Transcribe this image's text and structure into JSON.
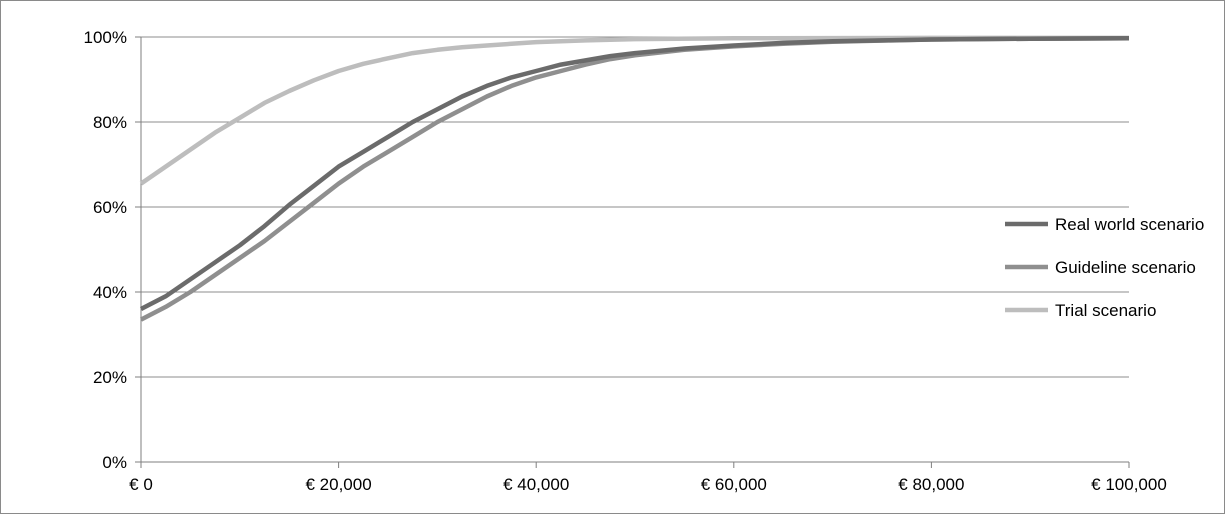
{
  "chart_data": {
    "type": "line",
    "title": "",
    "xlabel": "",
    "ylabel": "",
    "xlim": [
      0,
      100000
    ],
    "ylim": [
      0,
      100
    ],
    "x_ticks": [
      {
        "value": 0,
        "label": "€ 0"
      },
      {
        "value": 20000,
        "label": "€ 20,000"
      },
      {
        "value": 40000,
        "label": "€ 40,000"
      },
      {
        "value": 60000,
        "label": "€ 60,000"
      },
      {
        "value": 80000,
        "label": "€ 80,000"
      },
      {
        "value": 100000,
        "label": "€ 100,000"
      }
    ],
    "y_ticks": [
      {
        "value": 0,
        "label": "0%"
      },
      {
        "value": 20,
        "label": "20%"
      },
      {
        "value": 40,
        "label": "40%"
      },
      {
        "value": 60,
        "label": "60%"
      },
      {
        "value": 80,
        "label": "80%"
      },
      {
        "value": 100,
        "label": "100%"
      }
    ],
    "grid": "horizontal",
    "legend_position": "right",
    "series": [
      {
        "name": "Real world scenario",
        "color": "#6b6b6b",
        "points": [
          [
            0,
            36
          ],
          [
            2500,
            39
          ],
          [
            5000,
            43
          ],
          [
            7500,
            47
          ],
          [
            10000,
            51
          ],
          [
            12500,
            55.5
          ],
          [
            15000,
            60.5
          ],
          [
            17500,
            65
          ],
          [
            20000,
            69.5
          ],
          [
            22500,
            73
          ],
          [
            25000,
            76.5
          ],
          [
            27500,
            80
          ],
          [
            30000,
            83
          ],
          [
            32500,
            86
          ],
          [
            35000,
            88.5
          ],
          [
            37500,
            90.5
          ],
          [
            40000,
            92
          ],
          [
            42500,
            93.5
          ],
          [
            45000,
            94.5
          ],
          [
            47500,
            95.5
          ],
          [
            50000,
            96.2
          ],
          [
            55000,
            97.3
          ],
          [
            60000,
            98
          ],
          [
            65000,
            98.6
          ],
          [
            70000,
            99
          ],
          [
            80000,
            99.4
          ],
          [
            90000,
            99.6
          ],
          [
            100000,
            99.7
          ]
        ]
      },
      {
        "name": "Guideline scenario",
        "color": "#8f8f8f",
        "points": [
          [
            0,
            33.5
          ],
          [
            2500,
            36.5
          ],
          [
            5000,
            40
          ],
          [
            7500,
            44
          ],
          [
            10000,
            48
          ],
          [
            12500,
            52
          ],
          [
            15000,
            56.5
          ],
          [
            17500,
            61
          ],
          [
            20000,
            65.5
          ],
          [
            22500,
            69.5
          ],
          [
            25000,
            73
          ],
          [
            27500,
            76.5
          ],
          [
            30000,
            80
          ],
          [
            32500,
            83
          ],
          [
            35000,
            86
          ],
          [
            37500,
            88.5
          ],
          [
            40000,
            90.5
          ],
          [
            42500,
            92
          ],
          [
            45000,
            93.5
          ],
          [
            47500,
            94.8
          ],
          [
            50000,
            95.7
          ],
          [
            55000,
            97
          ],
          [
            60000,
            97.8
          ],
          [
            65000,
            98.4
          ],
          [
            70000,
            98.9
          ],
          [
            80000,
            99.4
          ],
          [
            90000,
            99.6
          ],
          [
            100000,
            99.7
          ]
        ]
      },
      {
        "name": "Trial scenario",
        "color": "#bdbdbd",
        "points": [
          [
            0,
            65.5
          ],
          [
            2500,
            69.5
          ],
          [
            5000,
            73.5
          ],
          [
            7500,
            77.5
          ],
          [
            10000,
            81
          ],
          [
            12500,
            84.5
          ],
          [
            15000,
            87.3
          ],
          [
            17500,
            89.8
          ],
          [
            20000,
            92
          ],
          [
            22500,
            93.7
          ],
          [
            25000,
            95
          ],
          [
            27500,
            96.2
          ],
          [
            30000,
            97
          ],
          [
            32500,
            97.6
          ],
          [
            35000,
            98
          ],
          [
            37500,
            98.4
          ],
          [
            40000,
            98.8
          ],
          [
            45000,
            99.2
          ],
          [
            50000,
            99.5
          ],
          [
            60000,
            99.7
          ],
          [
            80000,
            99.8
          ],
          [
            100000,
            99.8
          ]
        ]
      }
    ]
  }
}
